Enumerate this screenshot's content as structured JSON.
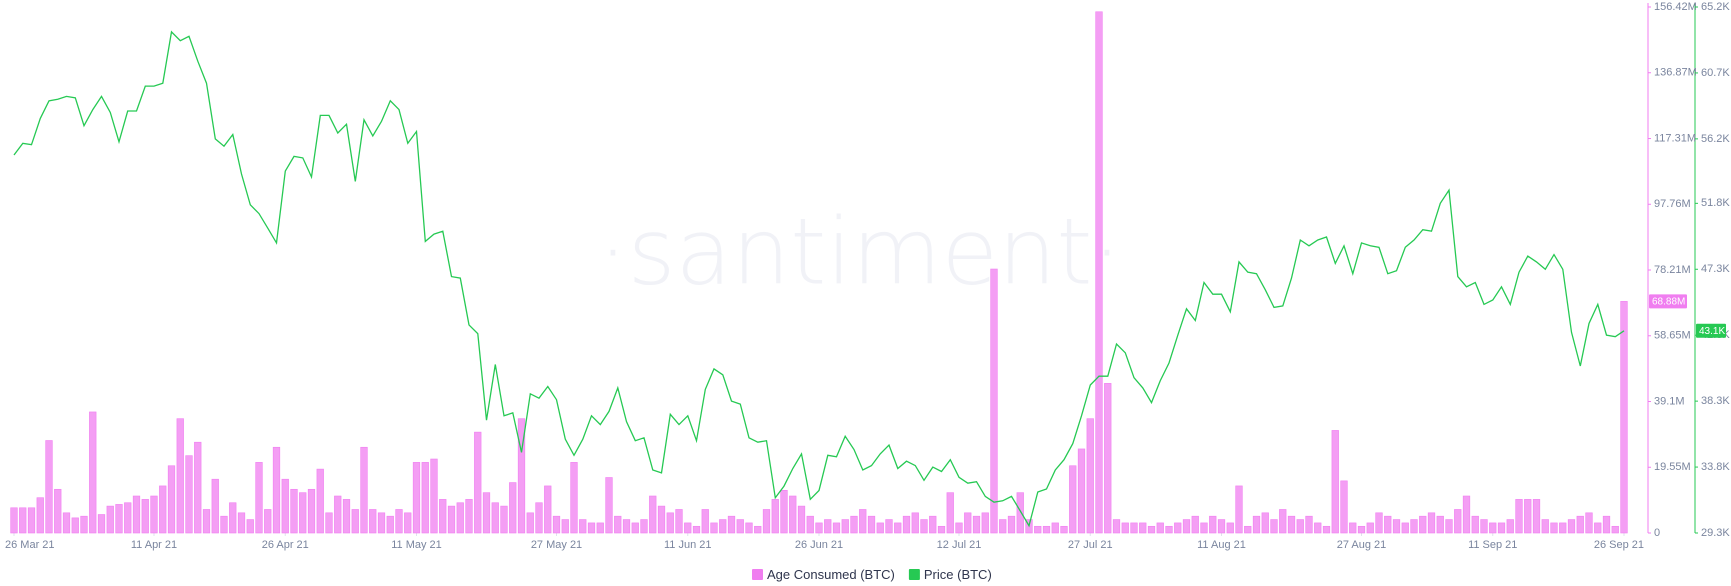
{
  "chart_data": {
    "type": "combo",
    "watermark": "·santiment·",
    "x": [
      "2021-03-26",
      "2021-03-27",
      "2021-03-28",
      "2021-03-29",
      "2021-03-30",
      "2021-03-31",
      "2021-04-01",
      "2021-04-02",
      "2021-04-03",
      "2021-04-04",
      "2021-04-05",
      "2021-04-06",
      "2021-04-07",
      "2021-04-08",
      "2021-04-09",
      "2021-04-10",
      "2021-04-11",
      "2021-04-12",
      "2021-04-13",
      "2021-04-14",
      "2021-04-15",
      "2021-04-16",
      "2021-04-17",
      "2021-04-18",
      "2021-04-19",
      "2021-04-20",
      "2021-04-21",
      "2021-04-22",
      "2021-04-23",
      "2021-04-24",
      "2021-04-25",
      "2021-04-26",
      "2021-04-27",
      "2021-04-28",
      "2021-04-29",
      "2021-04-30",
      "2021-05-01",
      "2021-05-02",
      "2021-05-03",
      "2021-05-04",
      "2021-05-05",
      "2021-05-06",
      "2021-05-07",
      "2021-05-08",
      "2021-05-09",
      "2021-05-10",
      "2021-05-11",
      "2021-05-12",
      "2021-05-13",
      "2021-05-14",
      "2021-05-15",
      "2021-05-16",
      "2021-05-17",
      "2021-05-18",
      "2021-05-19",
      "2021-05-20",
      "2021-05-21",
      "2021-05-22",
      "2021-05-23",
      "2021-05-24",
      "2021-05-25",
      "2021-05-26",
      "2021-05-27",
      "2021-05-28",
      "2021-05-29",
      "2021-05-30",
      "2021-05-31",
      "2021-06-01",
      "2021-06-02",
      "2021-06-03",
      "2021-06-04",
      "2021-06-05",
      "2021-06-06",
      "2021-06-07",
      "2021-06-08",
      "2021-06-09",
      "2021-06-10",
      "2021-06-11",
      "2021-06-12",
      "2021-06-13",
      "2021-06-14",
      "2021-06-15",
      "2021-06-16",
      "2021-06-17",
      "2021-06-18",
      "2021-06-19",
      "2021-06-20",
      "2021-06-21",
      "2021-06-22",
      "2021-06-23",
      "2021-06-24",
      "2021-06-25",
      "2021-06-26",
      "2021-06-27",
      "2021-06-28",
      "2021-06-29",
      "2021-06-30",
      "2021-07-01",
      "2021-07-02",
      "2021-07-03",
      "2021-07-04",
      "2021-07-05",
      "2021-07-06",
      "2021-07-07",
      "2021-07-08",
      "2021-07-09",
      "2021-07-10",
      "2021-07-11",
      "2021-07-12",
      "2021-07-13",
      "2021-07-14",
      "2021-07-15",
      "2021-07-16",
      "2021-07-17",
      "2021-07-18",
      "2021-07-19",
      "2021-07-20",
      "2021-07-21",
      "2021-07-22",
      "2021-07-23",
      "2021-07-24",
      "2021-07-25",
      "2021-07-26",
      "2021-07-27",
      "2021-07-28",
      "2021-07-29",
      "2021-07-30",
      "2021-07-31",
      "2021-08-01",
      "2021-08-02",
      "2021-08-03",
      "2021-08-04",
      "2021-08-05",
      "2021-08-06",
      "2021-08-07",
      "2021-08-08",
      "2021-08-09",
      "2021-08-10",
      "2021-08-11",
      "2021-08-12",
      "2021-08-13",
      "2021-08-14",
      "2021-08-15",
      "2021-08-16",
      "2021-08-17",
      "2021-08-18",
      "2021-08-19",
      "2021-08-20",
      "2021-08-21",
      "2021-08-22",
      "2021-08-23",
      "2021-08-24",
      "2021-08-25",
      "2021-08-26",
      "2021-08-27",
      "2021-08-28",
      "2021-08-29",
      "2021-08-30",
      "2021-08-31",
      "2021-09-01",
      "2021-09-02",
      "2021-09-03",
      "2021-09-04",
      "2021-09-05",
      "2021-09-06",
      "2021-09-07",
      "2021-09-08",
      "2021-09-09",
      "2021-09-10",
      "2021-09-11",
      "2021-09-12",
      "2021-09-13",
      "2021-09-14",
      "2021-09-15",
      "2021-09-16",
      "2021-09-17",
      "2021-09-18",
      "2021-09-19",
      "2021-09-20",
      "2021-09-21",
      "2021-09-22",
      "2021-09-23",
      "2021-09-24",
      "2021-09-25",
      "2021-09-26"
    ],
    "xlim": [
      "2021-03-26",
      "2021-09-26"
    ],
    "xticks": [
      {
        "value": "2021-03-26",
        "label": "26 Mar 21"
      },
      {
        "value": "2021-04-11",
        "label": "11 Apr 21"
      },
      {
        "value": "2021-04-26",
        "label": "26 Apr 21"
      },
      {
        "value": "2021-05-11",
        "label": "11 May 21"
      },
      {
        "value": "2021-05-27",
        "label": "27 May 21"
      },
      {
        "value": "2021-06-11",
        "label": "11 Jun 21"
      },
      {
        "value": "2021-06-26",
        "label": "26 Jun 21"
      },
      {
        "value": "2021-07-12",
        "label": "12 Jul 21"
      },
      {
        "value": "2021-07-27",
        "label": "27 Jul 21"
      },
      {
        "value": "2021-08-11",
        "label": "11 Aug 21"
      },
      {
        "value": "2021-08-27",
        "label": "27 Aug 21"
      },
      {
        "value": "2021-09-11",
        "label": "11 Sep 21"
      },
      {
        "value": "2021-09-26",
        "label": "26 Sep 21"
      }
    ],
    "ylim": [
      0,
      156420000
    ],
    "yticks": [
      0,
      {
        "value": 19550000,
        "label": "19.55M"
      },
      {
        "value": 39100000,
        "label": "39.1M"
      },
      {
        "value": 58650000,
        "label": "58.65M"
      },
      {
        "value": 78210000,
        "label": "78.21M"
      },
      {
        "value": 97760000,
        "label": "97.76M"
      },
      {
        "value": 117310000,
        "label": "117.31M"
      },
      {
        "value": 136870000,
        "label": "136.87M"
      },
      {
        "value": 156420000,
        "label": "156.42M"
      }
    ],
    "y2lim": [
      29300,
      65200
    ],
    "y2ticks": [
      {
        "value": 29300,
        "label": "29.3K"
      },
      {
        "value": 33800,
        "label": "33.8K"
      },
      {
        "value": 38300,
        "label": "38.3K"
      },
      {
        "value": 42800,
        "label": "42.8K"
      },
      {
        "value": 47300,
        "label": "47.3K"
      },
      {
        "value": 51800,
        "label": "51.8K"
      },
      {
        "value": 56200,
        "label": "56.2K"
      },
      {
        "value": 60700,
        "label": "60.7K"
      },
      {
        "value": 65200,
        "label": "65.2K"
      }
    ],
    "legend": "bottom",
    "series": [
      {
        "name": "Age Consumed (BTC)",
        "type": "bar",
        "color": "#f07ef0",
        "last_value_label": "68.88M",
        "values": [
          7500000.0,
          7500000.0,
          7500000.0,
          10500000.0,
          27500000.0,
          13000000.0,
          6000000.0,
          4500000.0,
          5000000.0,
          36000000.0,
          5500000.0,
          8000000.0,
          8500000.0,
          9000000.0,
          11000000.0,
          10000000.0,
          11000000.0,
          14000000.0,
          20000000.0,
          34000000.0,
          23000000.0,
          27000000.0,
          7000000.0,
          16000000.0,
          5000000.0,
          9000000.0,
          6000000.0,
          4000000.0,
          21000000.0,
          7000000.0,
          25500000.0,
          16000000.0,
          13000000.0,
          12000000.0,
          13000000.0,
          19000000.0,
          6000000.0,
          11000000.0,
          10000000.0,
          7000000.0,
          25500000.0,
          7000000.0,
          6000000.0,
          5000000.0,
          7000000.0,
          6000000.0,
          21000000.0,
          21000000.0,
          22000000.0,
          10000000.0,
          8000000.0,
          9000000.0,
          10000000.0,
          30000000.0,
          12000000.0,
          9000000.0,
          8000000.0,
          15000000.0,
          34000000.0,
          6000000.0,
          9000000.0,
          14000000.0,
          5000000.0,
          4000000.0,
          21000000.0,
          4000000.0,
          3000000.0,
          3000000.0,
          16500000.0,
          5000000.0,
          4000000.0,
          3000000.0,
          4000000.0,
          11000000.0,
          8000000.0,
          6000000.0,
          7000000.0,
          3000000.0,
          2000000.0,
          7000000.0,
          3000000.0,
          4000000.0,
          5000000.0,
          4000000.0,
          3000000.0,
          2000000.0,
          7000000.0,
          10000000.0,
          12700000.0,
          11000000.0,
          8000000.0,
          5000000.0,
          3000000.0,
          4000000.0,
          3000000.0,
          4000000.0,
          5000000.0,
          7000000.0,
          5000000.0,
          3000000.0,
          4000000.0,
          3000000.0,
          5000000.0,
          6000000.0,
          4000000.0,
          5000000.0,
          2000000.0,
          12000000.0,
          3000000.0,
          6000000.0,
          5000000.0,
          6000000.0,
          78500000.0,
          4000000.0,
          5000000.0,
          12000000.0,
          4000000.0,
          2000000.0,
          2000000.0,
          3000000.0,
          2000000.0,
          20000000.0,
          25000000.0,
          34000000.0,
          155000000.0,
          44500000.0,
          4000000.0,
          3000000.0,
          3000000.0,
          3000000.0,
          2000000.0,
          3000000.0,
          2000000.0,
          3000000.0,
          4000000.0,
          5000000.0,
          3000000.0,
          5000000.0,
          4000000.0,
          3000000.0,
          14000000.0,
          2000000.0,
          5000000.0,
          6000000.0,
          4000000.0,
          7000000.0,
          5000000.0,
          4000000.0,
          5000000.0,
          3000000.0,
          2000000.0,
          30500000.0,
          15500000.0,
          3000000.0,
          2000000.0,
          3000000.0,
          6000000.0,
          5000000.0,
          4000000.0,
          3000000.0,
          4000000.0,
          5000000.0,
          6000000.0,
          5000000.0,
          4000000.0,
          7000000.0,
          11000000.0,
          5000000.0,
          4000000.0,
          3000000.0,
          3000000.0,
          4000000.0,
          10000000.0,
          10000000.0,
          10000000.0,
          4000000.0,
          3000000.0,
          3000000.0,
          4000000.0,
          5000000.0,
          6000000.0,
          3000000.0,
          5000000.0,
          2000000.0,
          68880000.0
        ]
      },
      {
        "name": "Price (BTC)",
        "type": "line",
        "axis": "y2",
        "color": "#26c953",
        "last_value_label": "43.1K",
        "values": [
          55100,
          55900,
          55800,
          57600,
          58800,
          58900,
          59100,
          59000,
          57100,
          58200,
          59100,
          58000,
          56000,
          58100,
          58100,
          59800,
          59800,
          60000,
          63500,
          62900,
          63200,
          61500,
          60000,
          56200,
          55700,
          56500,
          53800,
          51700,
          51100,
          50100,
          49100,
          54000,
          55000,
          54900,
          53600,
          57800,
          57800,
          56600,
          57200,
          53300,
          57500,
          56400,
          57400,
          58800,
          58200,
          55900,
          56700,
          49200,
          49700,
          49900,
          46800,
          46700,
          43500,
          42900,
          37000,
          40800,
          37300,
          37500,
          34800,
          38800,
          38500,
          39300,
          38400,
          35700,
          34600,
          35700,
          37300,
          36700,
          37600,
          39200,
          36900,
          35600,
          35800,
          33600,
          33400,
          37400,
          36700,
          37300,
          35600,
          39100,
          40500,
          40100,
          38300,
          38100,
          35800,
          35500,
          35600,
          31700,
          32500,
          33700,
          34700,
          31600,
          32200,
          34600,
          34500,
          35900,
          35000,
          33600,
          33900,
          34700,
          35300,
          33700,
          34200,
          33900,
          32900,
          33800,
          33500,
          34300,
          33100,
          32700,
          32800,
          31800,
          31400,
          31500,
          31800,
          30800,
          29800,
          32100,
          32300,
          33600,
          34300,
          35400,
          37300,
          39400,
          40000,
          40000,
          42200,
          41600,
          39900,
          39200,
          38200,
          39700,
          40900,
          42800,
          44600,
          43800,
          46400,
          45600,
          45600,
          44400,
          47800,
          47100,
          47000,
          45900,
          44700,
          44800,
          46700,
          49300,
          48900,
          49300,
          49500,
          47700,
          48900,
          47000,
          49100,
          48900,
          48800,
          47000,
          47200,
          48800,
          49300,
          50000,
          49900,
          51800,
          52700,
          46800,
          46100,
          46400,
          44900,
          45200,
          46100,
          44900,
          47100,
          48200,
          47800,
          47300,
          48300,
          47300,
          43000,
          40700,
          43600,
          44900,
          42800,
          42700,
          43100
        ]
      }
    ]
  }
}
